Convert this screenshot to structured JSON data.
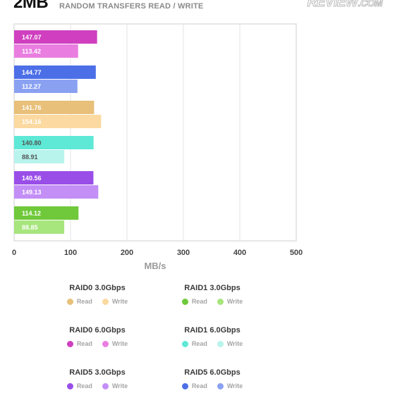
{
  "header": {
    "title": "2MB",
    "subtitle": "RANDOM TRANSFERS READ / WRITE",
    "logo_main": "REVIEW",
    "logo_suffix": ".COM"
  },
  "chart_data": {
    "type": "bar",
    "orientation": "horizontal",
    "xlabel": "MB/s",
    "xlim": [
      0,
      500
    ],
    "xticks": [
      0,
      100,
      200,
      300,
      400,
      500
    ],
    "grid": true,
    "legend_position": "bottom",
    "series": [
      {
        "name": "RAID0 3.0Gbps",
        "read": 141.76,
        "write": 154.16,
        "read_color": "#e8c07a",
        "write_color": "#fbd9a0",
        "label_color": "#ffffff"
      },
      {
        "name": "RAID0 6.0Gbps",
        "read": 147.07,
        "write": 113.42,
        "read_color": "#cf3fbf",
        "write_color": "#ea7ee0",
        "label_color": "#ffffff"
      },
      {
        "name": "RAID1 3.0Gbps",
        "read": 114.12,
        "write": 88.85,
        "read_color": "#6fc93a",
        "write_color": "#a7e57d",
        "label_color": "#ffffff"
      },
      {
        "name": "RAID1 6.0Gbps",
        "read": 140.8,
        "write": 88.91,
        "read_color": "#5ee8d6",
        "write_color": "#b8f3ec",
        "label_color": "#555555"
      },
      {
        "name": "RAID5 3.0Gbps",
        "read": 140.56,
        "write": 149.13,
        "read_color": "#9a4ee8",
        "write_color": "#c38ef6",
        "label_color": "#ffffff"
      },
      {
        "name": "RAID5 6.0Gbps",
        "read": 144.77,
        "write": 112.27,
        "read_color": "#4c6fe8",
        "write_color": "#8aa1f2",
        "label_color": "#ffffff"
      }
    ],
    "bar_order": [
      "RAID0 6.0Gbps",
      "RAID5 6.0Gbps",
      "RAID0 3.0Gbps",
      "RAID1 6.0Gbps",
      "RAID5 3.0Gbps",
      "RAID1 3.0Gbps"
    ],
    "value_labels": {
      "RAID0 6.0Gbps": [
        "147.07",
        "113.42"
      ],
      "RAID5 6.0Gbps": [
        "144.77",
        "112.27"
      ],
      "RAID0 3.0Gbps": [
        "141.76",
        "154.16"
      ],
      "RAID1 6.0Gbps": [
        "140.80",
        "88.91"
      ],
      "RAID5 3.0Gbps": [
        "140.56",
        "149.13"
      ],
      "RAID1 3.0Gbps": [
        "114.12",
        "88.85"
      ]
    }
  },
  "legend": {
    "read_label": "Read",
    "write_label": "Write",
    "groups": [
      {
        "title": "RAID0 3.0Gbps",
        "read_color": "#e8c07a",
        "write_color": "#fbd9a0"
      },
      {
        "title": "RAID1 3.0Gbps",
        "read_color": "#6fc93a",
        "write_color": "#a7e57d"
      },
      {
        "title": "RAID0 6.0Gbps",
        "read_color": "#cf3fbf",
        "write_color": "#ea7ee0"
      },
      {
        "title": "RAID1 6.0Gbps",
        "read_color": "#5ee8d6",
        "write_color": "#b8f3ec"
      },
      {
        "title": "RAID5 3.0Gbps",
        "read_color": "#9a4ee8",
        "write_color": "#c38ef6"
      },
      {
        "title": "RAID5 6.0Gbps",
        "read_color": "#4c6fe8",
        "write_color": "#8aa1f2"
      }
    ]
  }
}
